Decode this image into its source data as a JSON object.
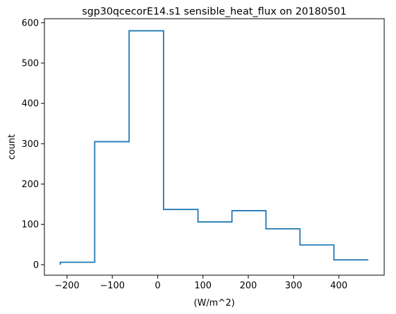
{
  "chart_data": {
    "type": "step",
    "title": "sgp30qcecorE14.s1 sensible_heat_flux on 20180501",
    "xlabel": "(W/m^2)",
    "ylabel": "count",
    "xlim": [
      -250,
      500
    ],
    "ylim": [
      -26,
      610
    ],
    "xticks": [
      -200,
      -100,
      0,
      100,
      200,
      300,
      400
    ],
    "xtick_labels": [
      "−200",
      "−100",
      "0",
      "100",
      "200",
      "300",
      "400"
    ],
    "yticks": [
      0,
      100,
      200,
      300,
      400,
      500,
      600
    ],
    "ytick_labels": [
      "0",
      "100",
      "200",
      "300",
      "400",
      "500",
      "600"
    ],
    "grid": false,
    "line_color": "#1f77b4",
    "series": [
      {
        "bin_edges": [
          -215,
          -139,
          -63,
          13,
          89,
          164,
          239,
          314,
          389,
          465
        ],
        "counts": [
          6,
          305,
          580,
          137,
          106,
          134,
          89,
          49,
          12
        ]
      }
    ]
  }
}
